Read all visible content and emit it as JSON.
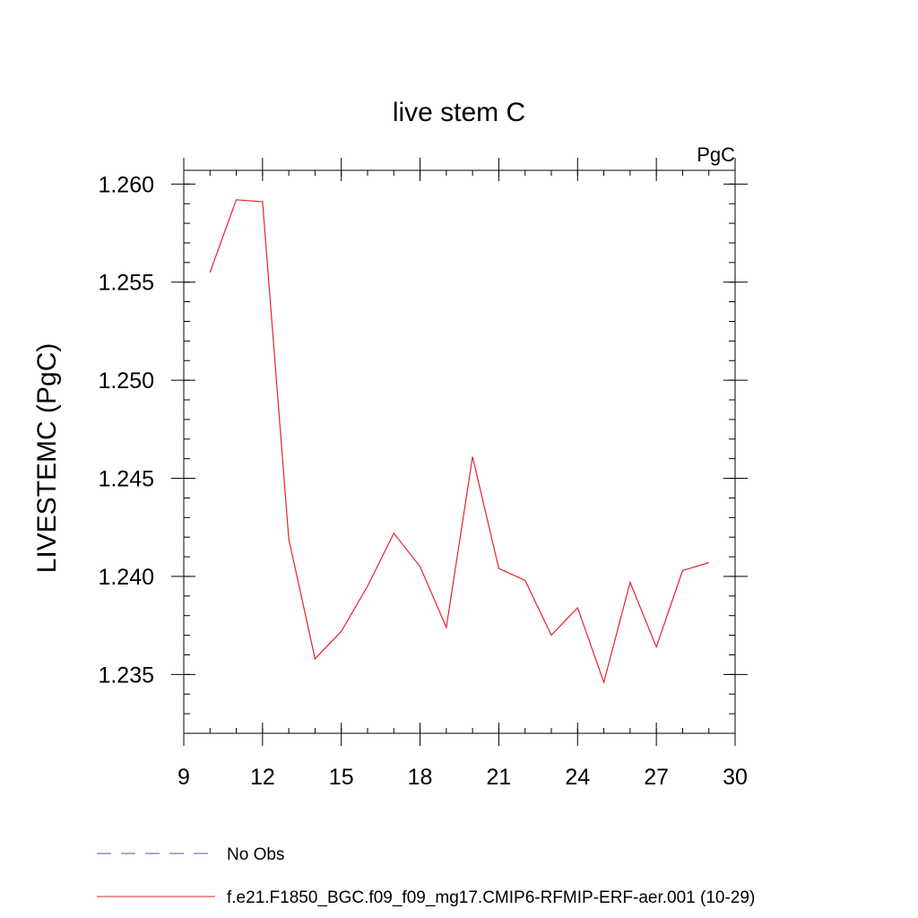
{
  "chart_data": {
    "type": "line",
    "title": "live stem C",
    "units_label": "PgC",
    "ylabel": "LIVESTEMC  (PgC)",
    "xlabel": "",
    "xlim": [
      9,
      30
    ],
    "ylim": [
      1.232,
      1.2607
    ],
    "x_ticks": [
      "9",
      "12",
      "15",
      "18",
      "21",
      "24",
      "27",
      "30"
    ],
    "y_ticks": [
      "1.235",
      "1.240",
      "1.245",
      "1.250",
      "1.255",
      "1.260"
    ],
    "grid": false,
    "legend": {
      "placement": "bottom",
      "entries": [
        {
          "label": "No Obs",
          "color": "#5a4fb0",
          "style": "dashed"
        },
        {
          "label": "f.e21.F1850_BGC.f09_f09_mg17.CMIP6-RFMIP-ERF-aer.001 (10-29)",
          "color": "#e8202a",
          "style": "solid"
        }
      ]
    },
    "series": [
      {
        "name": "f.e21.F1850_BGC.f09_f09_mg17.CMIP6-RFMIP-ERF-aer.001 (10-29)",
        "color": "#e8202a",
        "x": [
          10,
          11,
          12,
          13,
          14,
          15,
          16,
          17,
          18,
          19,
          20,
          21,
          22,
          23,
          24,
          25,
          26,
          27,
          28,
          29
        ],
        "y": [
          1.2555,
          1.2592,
          1.2591,
          1.2419,
          1.2358,
          1.2372,
          1.2395,
          1.2422,
          1.2405,
          1.2374,
          1.2461,
          1.2404,
          1.2398,
          1.237,
          1.2384,
          1.2346,
          1.2397,
          1.2364,
          1.2403,
          1.2407
        ]
      }
    ]
  }
}
